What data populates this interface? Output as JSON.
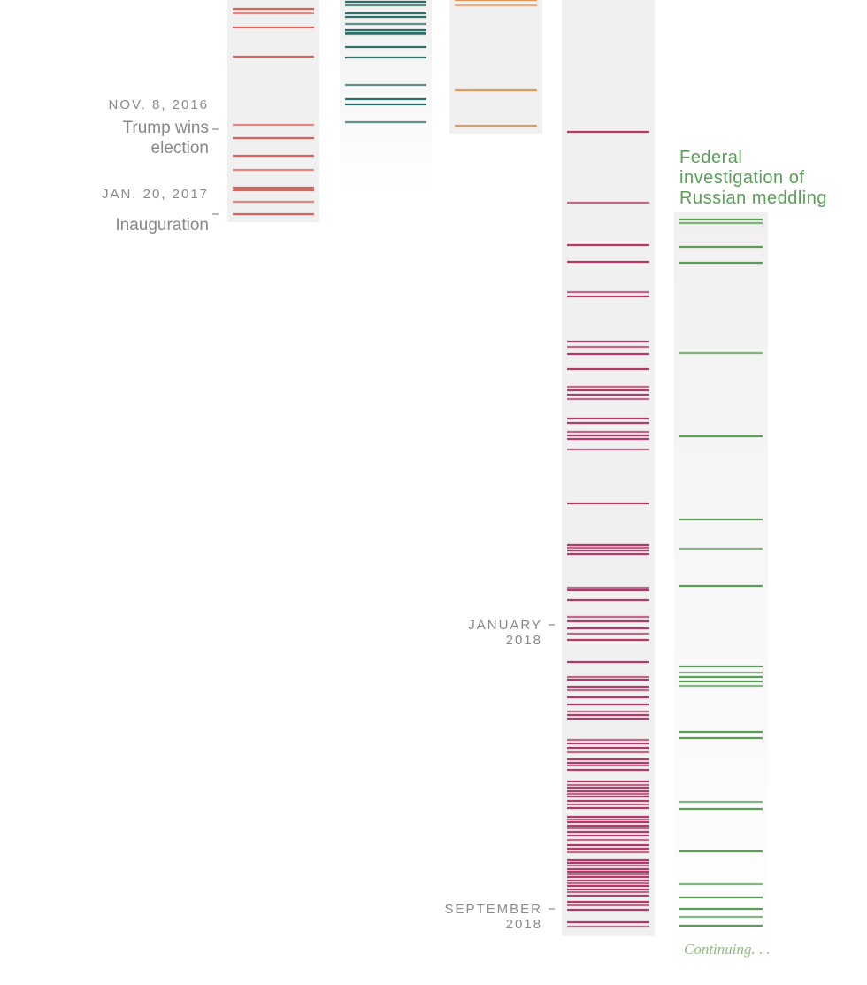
{
  "chart_data": {
    "type": "timeline",
    "columns": [
      {
        "name": "col-1",
        "color": "#d9645c",
        "fade_bottom": false,
        "events": [
          10,
          15,
          31,
          64,
          141,
          156,
          176,
          192,
          212,
          215,
          228,
          242
        ]
      },
      {
        "name": "col-2",
        "color": "#2f6e6b",
        "fade_bottom": true,
        "events": [
          2,
          6,
          15,
          19,
          27,
          34,
          37,
          39,
          53,
          65,
          96,
          112,
          118,
          138
        ]
      },
      {
        "name": "col-3",
        "color": "#e49a5c",
        "fade_bottom": false,
        "events": [
          0,
          6,
          102,
          142
        ]
      },
      {
        "name": "col-4",
        "color": "#b23a68",
        "fade_bottom": false,
        "events": [
          149,
          229,
          277,
          296,
          330,
          335,
          386,
          392,
          400,
          417,
          437,
          441,
          446,
          451,
          473,
          478,
          488,
          492,
          496,
          508,
          569,
          616,
          619,
          622,
          626,
          664,
          667,
          678,
          697,
          702,
          710,
          716,
          723,
          748,
          765,
          768,
          776,
          780,
          788,
          796,
          804,
          808,
          812,
          836,
          840,
          845,
          850,
          858,
          862,
          865,
          870,
          883,
          887,
          890,
          894,
          897,
          900,
          905,
          909,
          913,
          923,
          926,
          929,
          933,
          936,
          940,
          944,
          949,
          955,
          959,
          963,
          972,
          975,
          978,
          982,
          985,
          988,
          991,
          995,
          998,
          1001,
          1005,
          1008,
          1012,
          1019,
          1023,
          1028,
          1042,
          1047
        ],
        "labels": [
          {
            "line1": "JANUARY",
            "line2": "2018",
            "at": 706
          },
          {
            "line1": "SEPTEMBER",
            "line2": "2018",
            "at": 1027
          }
        ]
      },
      {
        "name": "col-5",
        "color": "#5a9e58",
        "fade_bottom": true,
        "title": [
          "Federal",
          "investigation of",
          "Russian meddling"
        ],
        "continuing_text": "Continuing. . .",
        "events": [
          248,
          252,
          279,
          297,
          399,
          493,
          587,
          620,
          662,
          753,
          760,
          765,
          770,
          775,
          827,
          834,
          906,
          914,
          962,
          999,
          1014,
          1027,
          1036,
          1046
        ]
      }
    ],
    "milestones": [
      {
        "date": "NOV. 8, 2016",
        "event": [
          "Trump wins",
          "election"
        ],
        "at": 146
      },
      {
        "date": "JAN. 20, 2017",
        "event": [
          "Inauguration"
        ],
        "at": 242
      }
    ]
  }
}
